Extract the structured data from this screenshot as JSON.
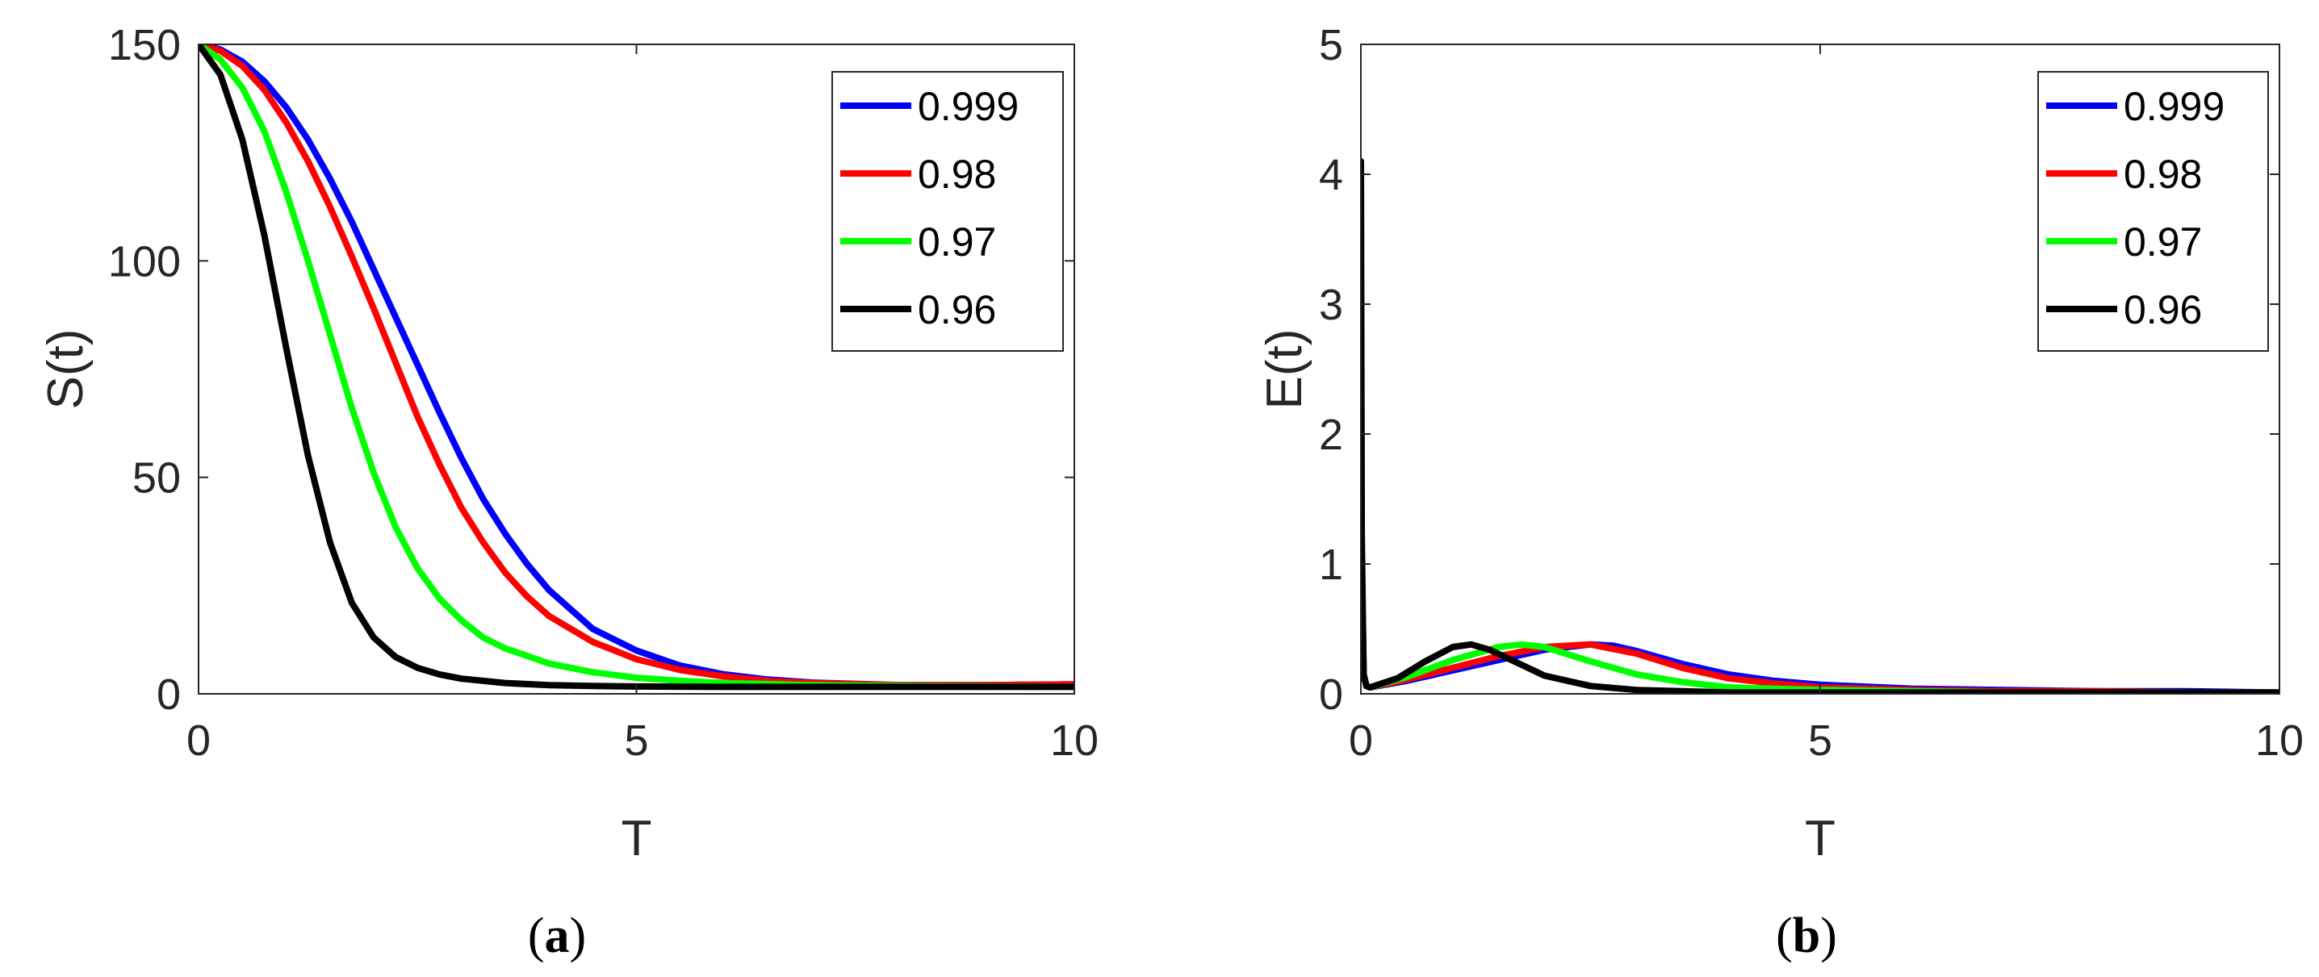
{
  "chart_data": [
    {
      "type": "line",
      "caption": "(a)",
      "caption_letter": "a",
      "xlabel": "T",
      "ylabel": "S(t)",
      "xlim": [
        0,
        10
      ],
      "ylim": [
        0,
        150
      ],
      "xticks": [
        "0",
        "5",
        "10"
      ],
      "yticks": [
        "0",
        "50",
        "100",
        "150"
      ],
      "grid": false,
      "legend": "top-right",
      "series": [
        {
          "name": "0.999",
          "color": "#0000ff",
          "x": [
            0,
            0.25,
            0.5,
            0.75,
            1,
            1.25,
            1.5,
            1.75,
            2,
            2.25,
            2.5,
            2.75,
            3,
            3.25,
            3.5,
            3.75,
            4,
            4.5,
            5,
            5.5,
            6,
            6.5,
            7,
            8,
            9,
            10
          ],
          "y": [
            150,
            148.8,
            146,
            141.5,
            135.5,
            128,
            119,
            109,
            98,
            87,
            76,
            65,
            54.5,
            45,
            37,
            30,
            24,
            15,
            10,
            6.5,
            4.5,
            3.3,
            2.6,
            2,
            2,
            2.2
          ]
        },
        {
          "name": "0.98",
          "color": "#ff0000",
          "x": [
            0,
            0.25,
            0.5,
            0.75,
            1,
            1.25,
            1.5,
            1.75,
            2,
            2.25,
            2.5,
            2.75,
            3,
            3.25,
            3.5,
            3.75,
            4,
            4.5,
            5,
            5.5,
            6,
            6.5,
            7,
            8,
            9,
            10
          ],
          "y": [
            150,
            148.5,
            145,
            139.5,
            132,
            123,
            112.5,
            101,
            89,
            76.5,
            64,
            53,
            43,
            35,
            28,
            22.5,
            18,
            12,
            8,
            5.5,
            4,
            3,
            2.5,
            2,
            2,
            2.2
          ]
        },
        {
          "name": "0.97",
          "color": "#00ff00",
          "x": [
            0,
            0.25,
            0.5,
            0.75,
            1,
            1.25,
            1.5,
            1.75,
            2,
            2.25,
            2.5,
            2.75,
            3,
            3.25,
            3.5,
            4,
            4.5,
            5,
            5.5,
            6,
            7,
            8,
            9,
            10
          ],
          "y": [
            150,
            146.5,
            140,
            130,
            116,
            100,
            83,
            66,
            51,
            38.5,
            29,
            22,
            17,
            13,
            10.5,
            7,
            5,
            3.7,
            3,
            2.5,
            2,
            1.8,
            1.7,
            1.6
          ]
        },
        {
          "name": "0.96",
          "color": "#000000",
          "x": [
            0,
            0.25,
            0.5,
            0.75,
            1,
            1.25,
            1.5,
            1.75,
            2,
            2.25,
            2.5,
            2.75,
            3,
            3.5,
            4,
            4.5,
            5,
            6,
            7,
            8,
            9,
            10
          ],
          "y": [
            150,
            143,
            128,
            106,
            80,
            55,
            35,
            21,
            13,
            8.5,
            6,
            4.5,
            3.5,
            2.5,
            2,
            1.8,
            1.7,
            1.6,
            1.6,
            1.6,
            1.6,
            1.6
          ]
        }
      ]
    },
    {
      "type": "line",
      "caption": "(b)",
      "caption_letter": "b",
      "xlabel": "T",
      "ylabel": "E(t)",
      "xlim": [
        0,
        10
      ],
      "ylim": [
        0,
        5
      ],
      "xticks": [
        "0",
        "5",
        "10"
      ],
      "yticks": [
        "0",
        "1",
        "2",
        "3",
        "4",
        "5"
      ],
      "grid": false,
      "legend": "top-right",
      "series": [
        {
          "name": "0.999",
          "color": "#0000ff",
          "x": [
            0,
            0.01,
            0.03,
            0.06,
            0.1,
            0.5,
            1,
            1.5,
            2,
            2.5,
            2.75,
            3,
            3.5,
            4,
            4.5,
            5,
            6,
            7,
            8,
            9,
            10
          ],
          "y": [
            2.2,
            0.8,
            0.15,
            0.06,
            0.05,
            0.1,
            0.18,
            0.26,
            0.34,
            0.38,
            0.37,
            0.33,
            0.23,
            0.15,
            0.1,
            0.07,
            0.04,
            0.03,
            0.02,
            0.02,
            0.01
          ]
        },
        {
          "name": "0.98",
          "color": "#ff0000",
          "x": [
            0,
            0.01,
            0.03,
            0.06,
            0.1,
            0.5,
            1,
            1.5,
            2,
            2.5,
            3,
            3.5,
            4,
            4.5,
            5,
            6,
            7,
            8,
            9,
            10
          ],
          "y": [
            2.6,
            0.9,
            0.15,
            0.06,
            0.05,
            0.11,
            0.2,
            0.29,
            0.36,
            0.38,
            0.31,
            0.2,
            0.12,
            0.08,
            0.05,
            0.03,
            0.02,
            0.02,
            0.01,
            0.01
          ]
        },
        {
          "name": "0.97",
          "color": "#00ff00",
          "x": [
            0,
            0.01,
            0.03,
            0.06,
            0.1,
            0.5,
            1,
            1.5,
            1.75,
            2,
            2.5,
            3,
            3.5,
            4,
            5,
            6,
            7,
            8,
            9,
            10
          ],
          "y": [
            3.3,
            1.0,
            0.15,
            0.06,
            0.05,
            0.13,
            0.26,
            0.36,
            0.38,
            0.36,
            0.25,
            0.15,
            0.09,
            0.05,
            0.03,
            0.02,
            0.01,
            0.01,
            0.01,
            0.01
          ]
        },
        {
          "name": "0.96",
          "color": "#000000",
          "x": [
            0,
            0.01,
            0.03,
            0.06,
            0.1,
            0.4,
            0.7,
            1,
            1.2,
            1.4,
            1.7,
            2,
            2.5,
            3,
            3.5,
            4,
            5,
            6,
            7,
            8,
            9,
            10
          ],
          "y": [
            4.1,
            1.2,
            0.15,
            0.06,
            0.05,
            0.12,
            0.25,
            0.36,
            0.38,
            0.34,
            0.24,
            0.14,
            0.06,
            0.03,
            0.02,
            0.01,
            0.01,
            0.01,
            0.01,
            0.01,
            0.01,
            0.01
          ]
        }
      ]
    }
  ]
}
